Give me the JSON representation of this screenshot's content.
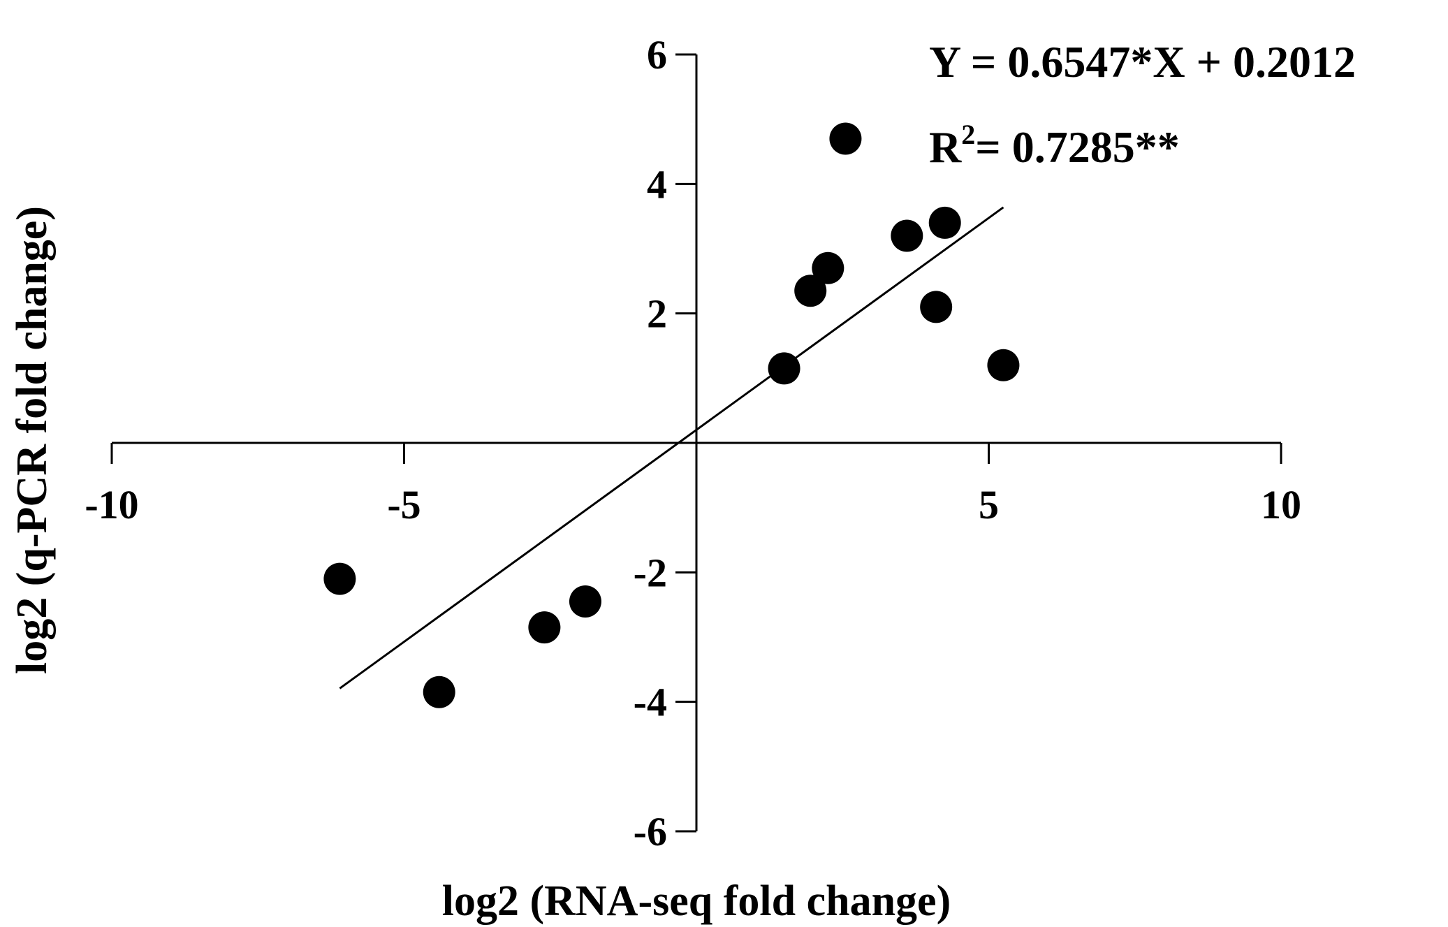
{
  "chart_data": {
    "type": "scatter",
    "title": "",
    "xlabel": "log2 (RNA-seq fold change)",
    "ylabel": "log2 (q-PCR fold change)",
    "xlim": [
      -10,
      10
    ],
    "ylim": [
      -6,
      6
    ],
    "xticks": [
      -10,
      -5,
      5,
      10
    ],
    "yticks": [
      6,
      4,
      2,
      -2,
      -4,
      -6
    ],
    "grid": false,
    "series": [
      {
        "points": [
          {
            "x": -6.1,
            "y": -2.1
          },
          {
            "x": -4.4,
            "y": -3.85
          },
          {
            "x": -2.6,
            "y": -2.85
          },
          {
            "x": -1.9,
            "y": -2.45
          },
          {
            "x": 1.5,
            "y": 1.15
          },
          {
            "x": 1.95,
            "y": 2.35
          },
          {
            "x": 2.25,
            "y": 2.7
          },
          {
            "x": 2.55,
            "y": 4.7
          },
          {
            "x": 3.6,
            "y": 3.2
          },
          {
            "x": 4.1,
            "y": 2.1
          },
          {
            "x": 4.25,
            "y": 3.4
          },
          {
            "x": 5.25,
            "y": 1.2
          }
        ]
      }
    ],
    "fit_line": {
      "slope": 0.6547,
      "intercept": 0.2012,
      "x_range": [
        -6.1,
        5.25
      ]
    },
    "annotations": {
      "equation": "Y = 0.6547*X + 0.2012",
      "r2_prefix": "R",
      "r2_sup": "2",
      "r2_value": "= 0.7285**"
    }
  }
}
